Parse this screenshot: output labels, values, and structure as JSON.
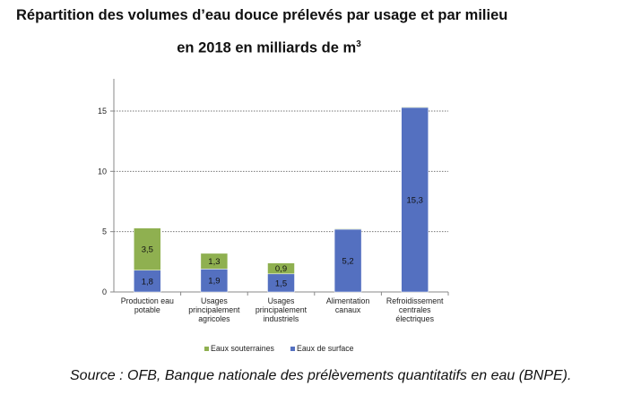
{
  "title_line1": "Répartition des volumes d’eau douce prélevés par usage et par milieu",
  "title_line2": "en 2018 en milliards de m",
  "title_sup": "3",
  "source": "Source : OFB, Banque nationale des prélèvements quantitatifs en eau (BNPE).",
  "chart_data": {
    "type": "bar",
    "stacked": true,
    "categories": [
      [
        "Production eau",
        "potable"
      ],
      [
        "Usages",
        "principalement",
        "agricoles"
      ],
      [
        "Usages",
        "principalement",
        "industriels"
      ],
      [
        "Alimentation",
        "canaux"
      ],
      [
        "Refroidissement",
        "centrales",
        "électriques"
      ]
    ],
    "series": [
      {
        "name": "Eaux de surface",
        "color": "#5470c0",
        "values": [
          1.8,
          1.9,
          1.5,
          5.2,
          15.3
        ],
        "labels": [
          "1,8",
          "1,9",
          "1,5",
          "5,2",
          "15,3"
        ]
      },
      {
        "name": "Eaux souterraines",
        "color": "#8fb050",
        "values": [
          3.5,
          1.3,
          0.9,
          0.05,
          0.05
        ],
        "labels": [
          "3,5",
          "1,3",
          "0,9",
          "",
          ""
        ]
      }
    ],
    "legend_order": [
      "Eaux souterraines",
      "Eaux de surface"
    ],
    "legend_position": "bottom",
    "yticks": [
      "0",
      "5",
      "10",
      "15"
    ],
    "ylim": [
      0,
      17.5
    ],
    "grid": true
  }
}
